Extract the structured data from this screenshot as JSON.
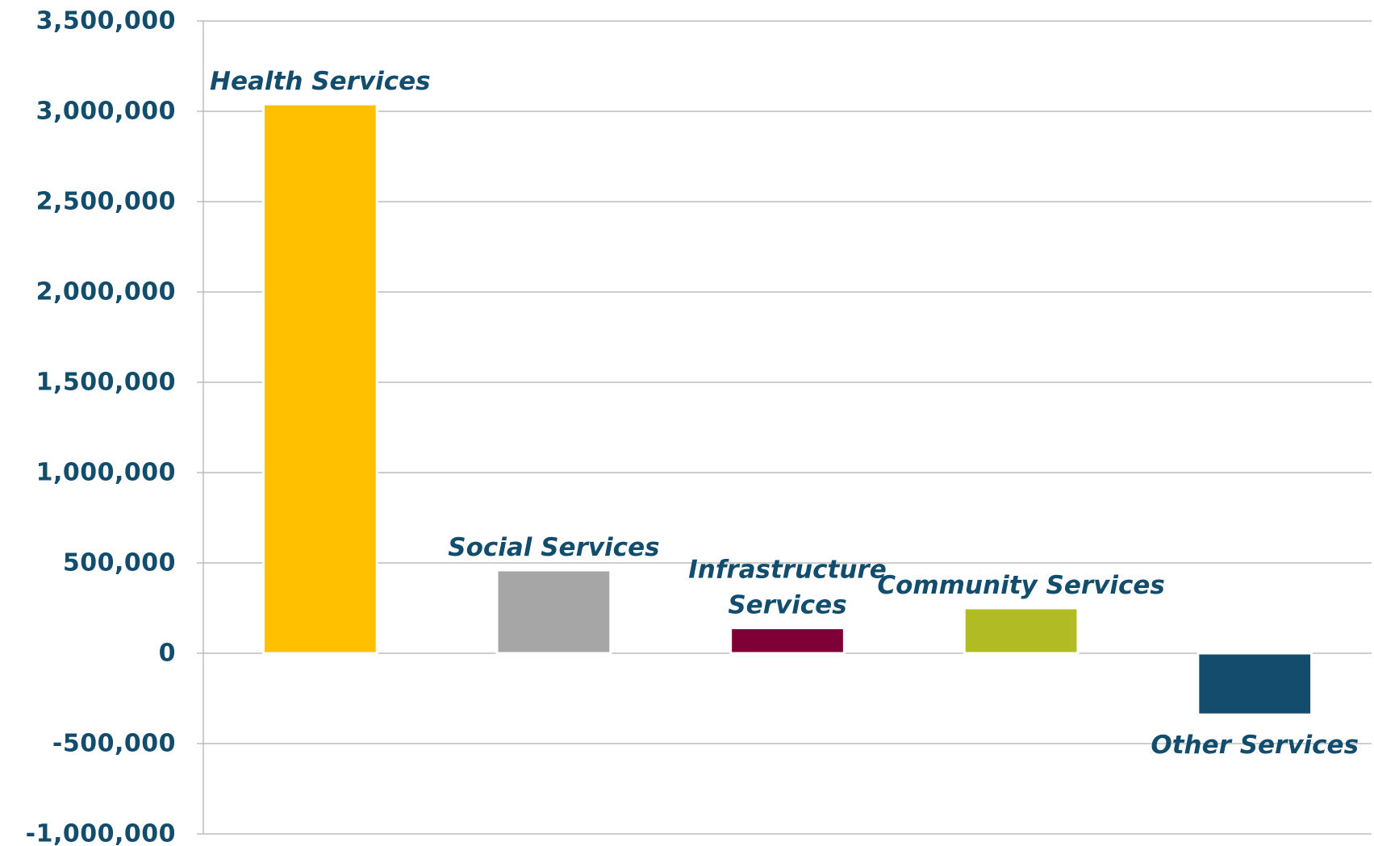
{
  "chart_data": {
    "type": "bar",
    "categories": [
      "Health Services",
      "Social Services",
      "Infrastructure Services",
      "Community Services",
      "Other Services"
    ],
    "data_labels": [
      [
        "Health Services"
      ],
      [
        "Social Services"
      ],
      [
        "Infrastructure",
        "Services"
      ],
      [
        "Community Services"
      ],
      [
        "Other Services"
      ]
    ],
    "values": [
      3040000,
      460000,
      140000,
      250000,
      -340000
    ],
    "colors": [
      "#FFC000",
      "#A6A6A6",
      "#7F0037",
      "#B1BC24",
      "#124D6E"
    ],
    "label_color": "#124D6E",
    "ylim": [
      -1000000,
      3500000
    ],
    "yticks": [
      3500000,
      3000000,
      2500000,
      2000000,
      1500000,
      1000000,
      500000,
      0,
      -500000,
      -1000000
    ],
    "ytick_labels": [
      "3,500,000",
      "3,000,000",
      "2,500,000",
      "2,000,000",
      "1,500,000",
      "1,000,000",
      "500,000",
      "0",
      "-500,000",
      "-1,000,000"
    ],
    "grid": true,
    "legend": "none",
    "title": "",
    "xlabel": "",
    "ylabel": ""
  }
}
